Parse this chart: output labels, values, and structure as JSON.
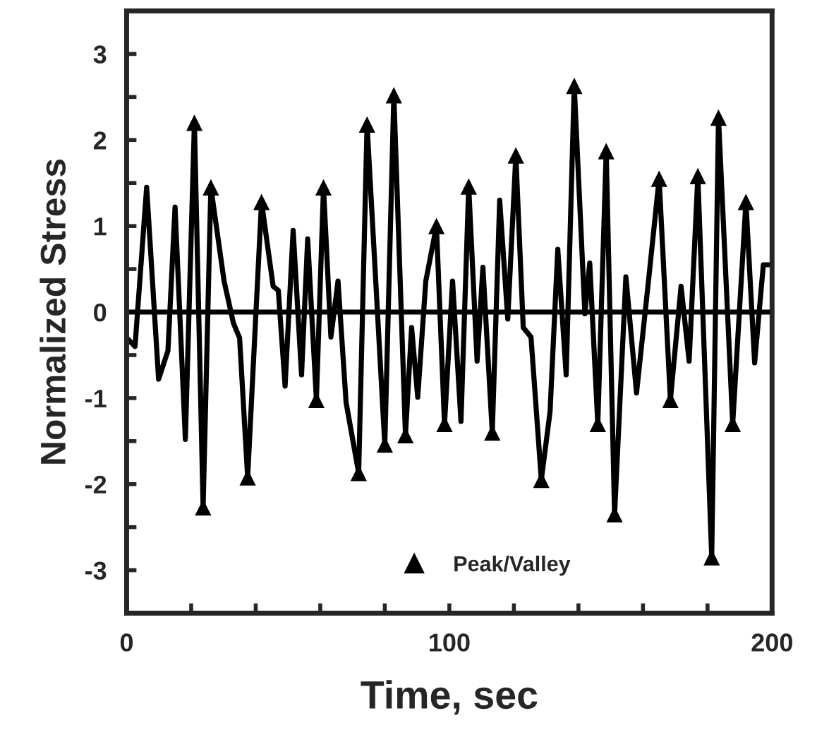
{
  "chart_data": {
    "type": "line",
    "xlabel": "Time, sec",
    "ylabel": "Normalized Stress",
    "xlim": [
      0,
      200
    ],
    "ylim": [
      -3.5,
      3.5
    ],
    "xticks": [
      0,
      {
        "value": 20,
        "label": null
      },
      {
        "value": 40,
        "label": null
      },
      {
        "value": 60,
        "label": null
      },
      {
        "value": 80,
        "label": null
      },
      100,
      {
        "value": 120,
        "label": null
      },
      {
        "value": 140,
        "label": null
      },
      {
        "value": 160,
        "label": null
      },
      {
        "value": 180,
        "label": null
      },
      200
    ],
    "yticks": [
      -3,
      {
        "value": -2.5,
        "label": null
      },
      -2,
      {
        "value": -1.5,
        "label": null
      },
      -1,
      {
        "value": -0.5,
        "label": null
      },
      0,
      {
        "value": 0.5,
        "label": null
      },
      1,
      {
        "value": 1.5,
        "label": null
      },
      2,
      {
        "value": 2.5,
        "label": null
      },
      3
    ],
    "grid": false,
    "legend": "bottom",
    "ref_lines": [
      {
        "axis": "y",
        "value": 0,
        "color": "#000000"
      }
    ],
    "series": [
      {
        "color": "#000000",
        "marker": "none",
        "line_style": "solid",
        "x": [
          0,
          2.6,
          6.2,
          9.9,
          12.8,
          15,
          18.2,
          21,
          23.7,
          26.1,
          30.2,
          33.1,
          35,
          37.5,
          41.8,
          45.4,
          47,
          49.1,
          51.6,
          54.2,
          56.1,
          58.8,
          61,
          63.3,
          65.5,
          68,
          71.9,
          74.5,
          80,
          82.8,
          86.4,
          88.3,
          90.2,
          92.7,
          96,
          98.5,
          101,
          103.6,
          106,
          108.6,
          110.4,
          113.3,
          115.6,
          118.1,
          120.6,
          122.9,
          125.3,
          128.5,
          131.2,
          133.6,
          136.2,
          138.7,
          142,
          143.5,
          146,
          148.6,
          151.2,
          154.7,
          158,
          161.7,
          165,
          168.5,
          171.8,
          174.3,
          177,
          181.3,
          183.4,
          187.8,
          191.9,
          194.6,
          197.3,
          200
        ],
        "values": [
          -0.3,
          -0.4,
          1.45,
          -0.78,
          -0.45,
          1.22,
          -1.48,
          2.2,
          -2.27,
          1.45,
          0.36,
          -0.13,
          -0.3,
          -1.92,
          1.28,
          0.3,
          0.25,
          -0.86,
          0.95,
          -0.73,
          0.85,
          -1.02,
          1.45,
          -0.29,
          0.36,
          -1.05,
          -1.87,
          2.18,
          -1.54,
          2.52,
          -1.43,
          -0.18,
          -0.99,
          0.36,
          1.0,
          -1.3,
          0.36,
          -1.27,
          1.46,
          -0.57,
          0.52,
          -1.4,
          1.3,
          -0.08,
          1.82,
          -0.18,
          -0.29,
          -1.95,
          -1.16,
          0.73,
          -0.73,
          2.63,
          -0.02,
          0.57,
          -1.3,
          1.87,
          -2.35,
          0.41,
          -0.94,
          0.36,
          1.55,
          -1.02,
          0.3,
          -0.57,
          1.58,
          -2.85,
          2.26,
          -1.3,
          1.28,
          -0.59,
          0.55,
          0.55
        ]
      },
      {
        "type": "scatter",
        "name": "Peak/Valley",
        "color": "#000000",
        "marker": "triangle",
        "x": [
          21,
          23.7,
          26.1,
          37.5,
          41.8,
          58.8,
          61,
          71.9,
          74.5,
          80,
          82.8,
          86.4,
          96,
          98.5,
          106,
          113.3,
          120.6,
          128.5,
          138.7,
          146,
          148.6,
          151.2,
          165,
          168.5,
          177,
          181.3,
          183.4,
          187.8,
          191.9
        ],
        "values": [
          2.2,
          -2.27,
          1.45,
          -1.92,
          1.28,
          -1.02,
          1.45,
          -1.87,
          2.18,
          -1.54,
          2.52,
          -1.43,
          1.0,
          -1.3,
          1.46,
          -1.4,
          1.82,
          -1.95,
          2.63,
          -1.3,
          1.87,
          -2.35,
          1.55,
          -1.02,
          1.58,
          -2.85,
          2.26,
          -1.3,
          1.28
        ]
      }
    ]
  }
}
